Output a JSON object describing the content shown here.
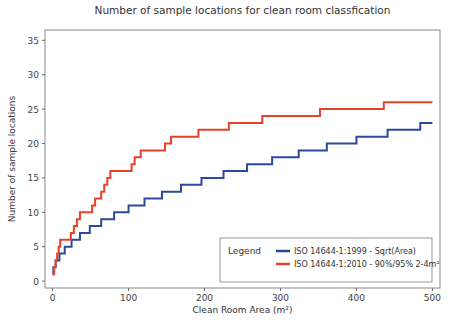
{
  "chart_data": {
    "type": "line",
    "title": "Number of sample locations for clean room classfication",
    "x_label": "Clean Room Area (m²)",
    "y_label": "Number of sample locations",
    "legend_title": "Legend",
    "legend": "lower right",
    "grid": false,
    "line_style": "step",
    "xlim": [
      -10,
      510
    ],
    "ylim": [
      -1,
      36.5
    ],
    "xticks": [
      0,
      100,
      200,
      300,
      400,
      500
    ],
    "yticks": [
      0,
      5,
      10,
      15,
      20,
      25,
      30,
      35
    ],
    "series": [
      {
        "name": "ISO 14644-1:1999 - Sqrt(Area)",
        "color": "#2b4a9e",
        "x": [
          0,
          1,
          4,
          9,
          16,
          25,
          36,
          49,
          64,
          81,
          100,
          121,
          144,
          169,
          196,
          225,
          256,
          289,
          324,
          361,
          400,
          441,
          484,
          500
        ],
        "values": [
          1,
          2,
          3,
          4,
          5,
          6,
          7,
          8,
          9,
          10,
          11,
          12,
          13,
          14,
          15,
          16,
          17,
          18,
          19,
          20,
          21,
          22,
          23,
          23
        ]
      },
      {
        "name": "ISO 14644-1:2010 - 90%/95% 2-4m²",
        "color": "#e8402a",
        "x": [
          0,
          2,
          4,
          6,
          8,
          10,
          24,
          28,
          32,
          36,
          52,
          56,
          64,
          68,
          72,
          76,
          104,
          108,
          116,
          148,
          156,
          192,
          232,
          276,
          352,
          436,
          500
        ],
        "values": [
          1,
          2,
          3,
          4,
          5,
          6,
          7,
          8,
          9,
          10,
          11,
          12,
          13,
          14,
          15,
          16,
          17,
          18,
          19,
          20,
          21,
          22,
          23,
          24,
          25,
          26,
          26
        ]
      }
    ]
  }
}
